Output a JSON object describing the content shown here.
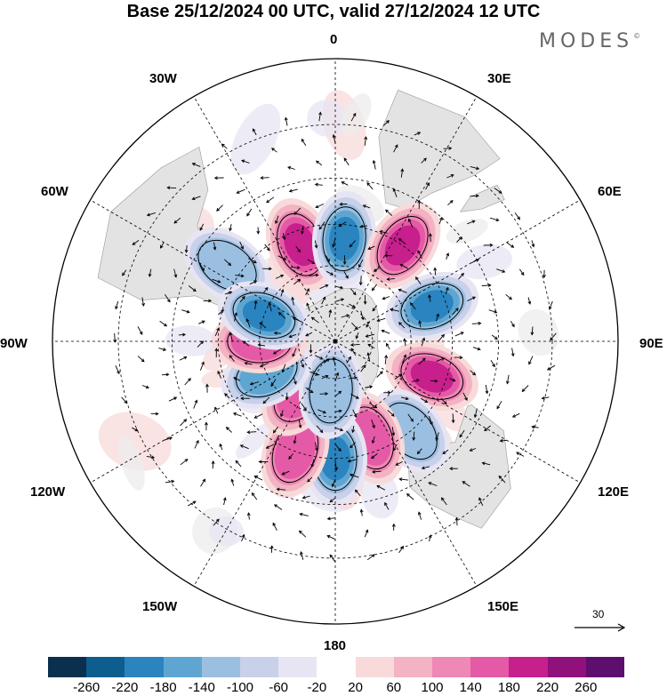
{
  "title": "Base 25/12/2024 00 UTC, valid 27/12/2024 12 UTC",
  "brand": "MODES",
  "brand_mark": "©",
  "longitude_labels": {
    "l0": "0",
    "l30e": "30E",
    "l60e": "60E",
    "l90e": "90E",
    "l120e": "120E",
    "l150e": "150E",
    "l180": "180",
    "l150w": "150W",
    "l120w": "120W",
    "l90w": "90W",
    "l60w": "60W",
    "l30w": "30W"
  },
  "reference_vector_label": "30",
  "colorbar": {
    "ticks": [
      "-260",
      "-220",
      "-180",
      "-140",
      "-100",
      "-60",
      "-20",
      "20",
      "60",
      "100",
      "140",
      "180",
      "220",
      "260"
    ],
    "colors": [
      "#0a2f4f",
      "#0d5d8f",
      "#2a84bf",
      "#5ea6d1",
      "#9bbfe0",
      "#c8d0ea",
      "#e7e5f3",
      "#ffffff",
      "#f8dada",
      "#f3b3c3",
      "#ee88b4",
      "#e55aa6",
      "#c71f8c",
      "#90107c",
      "#5e0f6d"
    ]
  },
  "map": {
    "projection": "south polar stereographic",
    "field": "Southern hemisphere anomaly pattern with wind vectors",
    "anomaly_centers": [
      {
        "sign": "positive",
        "lon": -20,
        "lat": -50,
        "strength": 180
      },
      {
        "sign": "negative",
        "lon": 5,
        "lat": -50,
        "strength": -200
      },
      {
        "sign": "negative",
        "lon": -55,
        "lat": -40,
        "strength": -100
      },
      {
        "sign": "positive",
        "lon": 35,
        "lat": -45,
        "strength": 200
      },
      {
        "sign": "negative",
        "lon": 70,
        "lat": -50,
        "strength": -180
      },
      {
        "sign": "positive",
        "lon": 110,
        "lat": -50,
        "strength": 180
      },
      {
        "sign": "negative",
        "lon": 140,
        "lat": -45,
        "strength": -120
      },
      {
        "sign": "positive",
        "lon": 160,
        "lat": -50,
        "strength": 160
      },
      {
        "sign": "negative",
        "lon": 180,
        "lat": -45,
        "strength": -200
      },
      {
        "sign": "positive",
        "lon": -160,
        "lat": -45,
        "strength": 140
      },
      {
        "sign": "positive",
        "lon": -145,
        "lat": -65,
        "strength": 140
      },
      {
        "sign": "negative",
        "lon": -175,
        "lat": -70,
        "strength": -120
      },
      {
        "sign": "negative",
        "lon": -115,
        "lat": -60,
        "strength": -140
      },
      {
        "sign": "positive",
        "lon": -90,
        "lat": -60,
        "strength": 160
      },
      {
        "sign": "negative",
        "lon": -70,
        "lat": -60,
        "strength": -180
      }
    ]
  }
}
